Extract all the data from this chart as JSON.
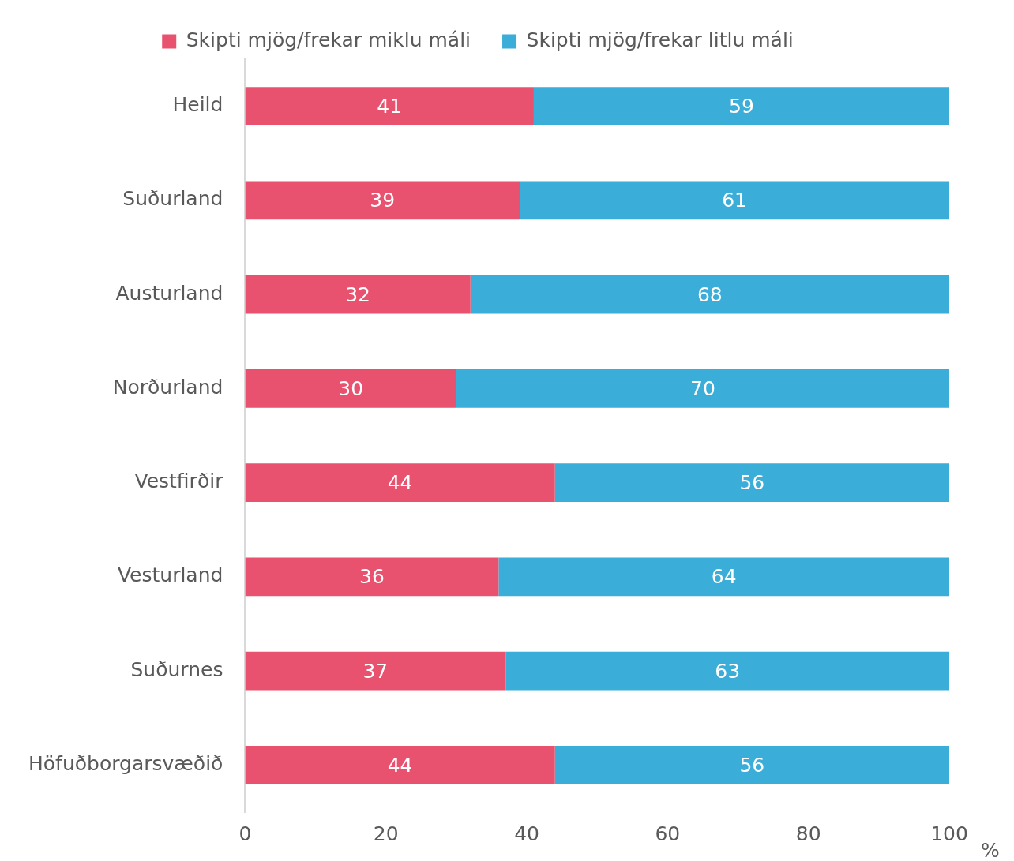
{
  "chart_data": {
    "type": "bar",
    "orientation": "horizontal",
    "stacked": true,
    "xlabel": "%",
    "categories": [
      "Heild",
      "Suðurland",
      "Austurland",
      "Norðurland",
      "Vestfirðir",
      "Vesturland",
      "Suðurnes",
      "Höfuðborgarsvæðið"
    ],
    "series": [
      {
        "name": "Skipti mjög/frekar miklu máli",
        "color": "#e9526f",
        "values": [
          41,
          39,
          32,
          30,
          44,
          36,
          37,
          44
        ]
      },
      {
        "name": "Skipti mjög/frekar litlu máli",
        "color": "#3badd9",
        "values": [
          59,
          61,
          68,
          70,
          56,
          64,
          63,
          56
        ]
      }
    ],
    "xlim": [
      0,
      100
    ],
    "xticks": [
      0,
      20,
      40,
      60,
      80,
      100
    ],
    "grid": false,
    "legend": "top",
    "data_labels": true
  }
}
